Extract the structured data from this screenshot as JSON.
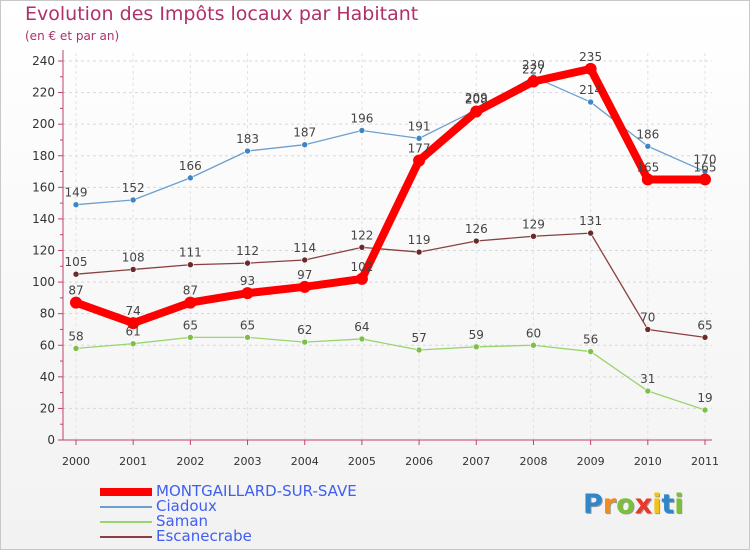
{
  "chart_data": {
    "type": "line",
    "title": "Evolution des Impôts locaux par Habitant",
    "subtitle": "(en € et par an)",
    "xlabel": "",
    "ylabel": "",
    "x": [
      "2000",
      "2001",
      "2002",
      "2003",
      "2004",
      "2005",
      "2006",
      "2007",
      "2008",
      "2009",
      "2010",
      "2011"
    ],
    "ylim": [
      0,
      240
    ],
    "yticks": [
      0,
      20,
      40,
      60,
      80,
      100,
      120,
      140,
      160,
      180,
      200,
      220,
      240
    ],
    "grid": true,
    "legend_position": "bottom-left",
    "series": [
      {
        "name": "Ciadoux",
        "color": "#6b9fd1",
        "marker": "#3d86c6",
        "values": [
          149,
          152,
          166,
          183,
          187,
          196,
          191,
          209,
          230,
          214,
          186,
          170
        ]
      },
      {
        "name": "Saman",
        "color": "#9ad46e",
        "marker": "#7cc04a",
        "values": [
          58,
          61,
          65,
          65,
          62,
          64,
          57,
          59,
          60,
          56,
          31,
          19
        ]
      },
      {
        "name": "Escanecrabe",
        "color": "#8a4040",
        "marker": "#6b2a2a",
        "values": [
          105,
          108,
          111,
          112,
          114,
          122,
          119,
          126,
          129,
          131,
          70,
          65
        ]
      },
      {
        "name": "MONTGAILLARD-SUR-SAVE",
        "color": "#ff0000",
        "marker": "#ff0000",
        "values": [
          87,
          74,
          87,
          93,
          97,
          102,
          177,
          208,
          227,
          235,
          165,
          165
        ]
      }
    ]
  },
  "legend": {
    "items": [
      {
        "label": "MONTGAILLARD-SUR-SAVE",
        "color": "#ff0000",
        "thick": true
      },
      {
        "label": "Ciadoux",
        "color": "#6b9fd1",
        "thick": false
      },
      {
        "label": "Saman",
        "color": "#9ad46e",
        "thick": false
      },
      {
        "label": "Escanecrabe",
        "color": "#8a4040",
        "thick": false
      }
    ]
  },
  "logo": {
    "letters": [
      "P",
      "r",
      "o",
      "x",
      "i",
      "t",
      "i"
    ],
    "colors": [
      "#2f86c8",
      "#f28c1b",
      "#7cbf3c",
      "#e8392b",
      "#f2c218",
      "#2f86c8",
      "#7cbf3c"
    ]
  }
}
